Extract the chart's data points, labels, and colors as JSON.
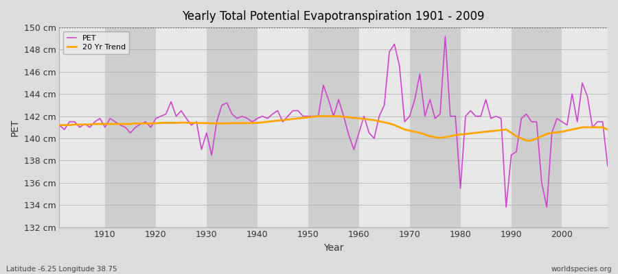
{
  "title": "Yearly Total Potential Evapotranspiration 1901 - 2009",
  "xlabel": "Year",
  "ylabel": "PET",
  "bottom_left_label": "Latitude -6.25 Longitude 38.75",
  "bottom_right_label": "worldspecies.org",
  "pet_color": "#CC44CC",
  "trend_color": "#FFA500",
  "bg_color": "#DCDCDC",
  "band_color_light": "#E8E8E8",
  "band_color_dark": "#CECECE",
  "ylim": [
    132,
    150
  ],
  "yticks": [
    132,
    134,
    136,
    138,
    140,
    142,
    144,
    146,
    148,
    150
  ],
  "years": [
    1901,
    1902,
    1903,
    1904,
    1905,
    1906,
    1907,
    1908,
    1909,
    1910,
    1911,
    1912,
    1913,
    1914,
    1915,
    1916,
    1917,
    1918,
    1919,
    1920,
    1921,
    1922,
    1923,
    1924,
    1925,
    1926,
    1927,
    1928,
    1929,
    1930,
    1931,
    1932,
    1933,
    1934,
    1935,
    1936,
    1937,
    1938,
    1939,
    1940,
    1941,
    1942,
    1943,
    1944,
    1945,
    1946,
    1947,
    1948,
    1949,
    1950,
    1951,
    1952,
    1953,
    1954,
    1955,
    1956,
    1957,
    1958,
    1959,
    1960,
    1961,
    1962,
    1963,
    1964,
    1965,
    1966,
    1967,
    1968,
    1969,
    1970,
    1971,
    1972,
    1973,
    1974,
    1975,
    1976,
    1977,
    1978,
    1979,
    1980,
    1981,
    1982,
    1983,
    1984,
    1985,
    1986,
    1987,
    1988,
    1989,
    1990,
    1991,
    1992,
    1993,
    1994,
    1995,
    1996,
    1997,
    1998,
    1999,
    2000,
    2001,
    2002,
    2003,
    2004,
    2005,
    2006,
    2007,
    2008,
    2009
  ],
  "pet_values": [
    141.2,
    140.8,
    141.5,
    141.5,
    141.0,
    141.3,
    141.0,
    141.5,
    141.8,
    141.0,
    141.8,
    141.5,
    141.2,
    141.0,
    140.5,
    141.0,
    141.3,
    141.5,
    141.0,
    141.8,
    142.0,
    142.2,
    143.3,
    142.0,
    142.5,
    141.8,
    141.2,
    141.5,
    139.0,
    140.5,
    138.5,
    141.5,
    143.0,
    143.2,
    142.2,
    141.8,
    142.0,
    141.8,
    141.5,
    141.8,
    142.0,
    141.8,
    142.2,
    142.5,
    141.5,
    142.0,
    142.5,
    142.5,
    142.0,
    142.0,
    142.0,
    142.0,
    144.8,
    143.5,
    142.0,
    143.5,
    142.0,
    140.3,
    139.0,
    140.5,
    142.0,
    140.5,
    140.0,
    142.0,
    143.0,
    147.8,
    148.5,
    146.5,
    141.5,
    142.0,
    143.5,
    145.8,
    142.0,
    143.5,
    141.8,
    142.2,
    149.2,
    142.0,
    142.0,
    135.5,
    142.0,
    142.5,
    142.0,
    142.0,
    143.5,
    141.8,
    142.0,
    141.8,
    133.8,
    138.5,
    138.8,
    141.8,
    142.2,
    141.5,
    141.5,
    136.0,
    133.8,
    140.5,
    141.8,
    141.5,
    141.2,
    144.0,
    141.5,
    145.0,
    143.8,
    141.0,
    141.5,
    141.5,
    137.5
  ],
  "trend_values": [
    141.2,
    141.2,
    141.2,
    141.25,
    141.25,
    141.25,
    141.25,
    141.3,
    141.3,
    141.3,
    141.3,
    141.3,
    141.3,
    141.3,
    141.3,
    141.35,
    141.35,
    141.35,
    141.35,
    141.35,
    141.4,
    141.4,
    141.4,
    141.4,
    141.42,
    141.42,
    141.4,
    141.4,
    141.38,
    141.38,
    141.35,
    141.35,
    141.35,
    141.35,
    141.38,
    141.38,
    141.38,
    141.38,
    141.38,
    141.4,
    141.45,
    141.5,
    141.55,
    141.6,
    141.65,
    141.7,
    141.75,
    141.8,
    141.85,
    141.9,
    141.95,
    142.0,
    142.0,
    142.0,
    142.0,
    142.0,
    141.95,
    141.9,
    141.85,
    141.8,
    141.75,
    141.7,
    141.65,
    141.55,
    141.45,
    141.35,
    141.2,
    141.0,
    140.8,
    140.7,
    140.6,
    140.5,
    140.35,
    140.2,
    140.1,
    140.05,
    140.1,
    140.2,
    140.3,
    140.35,
    140.4,
    140.45,
    140.5,
    140.55,
    140.6,
    140.65,
    140.7,
    140.75,
    140.8,
    140.5,
    140.2,
    140.0,
    139.8,
    139.8,
    140.0,
    140.2,
    140.4,
    140.5,
    140.55,
    140.6,
    140.7,
    140.8,
    140.9,
    141.0,
    141.0,
    141.0,
    141.0,
    141.0,
    140.8
  ]
}
